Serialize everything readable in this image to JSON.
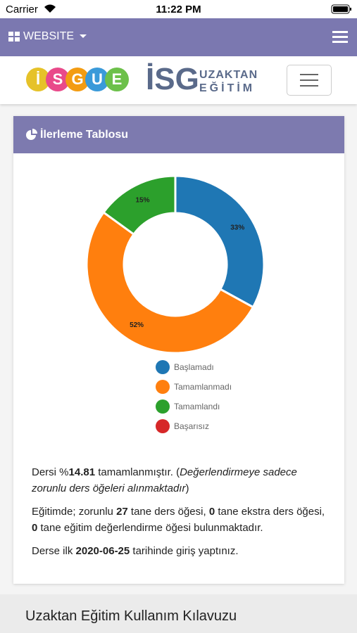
{
  "status_bar": {
    "carrier": "Carrier",
    "time": "11:22 PM"
  },
  "nav": {
    "menu": "WEBSITE"
  },
  "logo": {
    "letters": [
      "İ",
      "S",
      "G",
      "U",
      "E"
    ],
    "brand": "İSG",
    "line1": "UZAKTAN",
    "line2": "EĞİTİM"
  },
  "card": {
    "title": "İlerleme Tablosu"
  },
  "chart_data": {
    "type": "pie",
    "donut": true,
    "categories": [
      "Başlamadı",
      "Tamamlanmadı",
      "Tamamlandı",
      "Başarısız"
    ],
    "values": [
      33,
      52,
      15,
      0
    ],
    "value_labels": [
      "33%",
      "52%",
      "15%",
      null
    ],
    "colors": [
      "#1f77b4",
      "#ff7f0e",
      "#2ca02c",
      "#d62728"
    ],
    "legend": "bottom"
  },
  "paragraphs": [
    [
      "Dersi %",
      "14.81",
      " tamamlanmıştır. (",
      "Değerlendirmeye sadece zorunlu ders öğeleri alınmaktadır",
      ")"
    ],
    [
      "Eğitimde; zorunlu ",
      "27",
      " tane ders öğesi, ",
      "0",
      " tane ekstra ders öğesi, ",
      "0",
      " tane eğitim değerlendirme öğesi bulunmaktadır."
    ],
    [
      "Derse ilk ",
      "2020-06-25",
      " tarihinde giriş yaptınız."
    ]
  ],
  "footer": {
    "title": "Uzaktan Eğitim Kullanım Kılavuzu"
  }
}
